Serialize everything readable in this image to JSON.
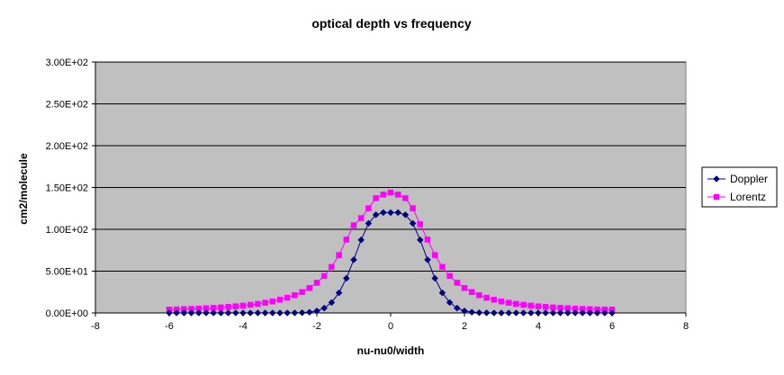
{
  "chart_data": {
    "type": "line",
    "title": "optical depth vs frequency",
    "xlabel": "nu-nu0/width",
    "ylabel": "cm2/molecule",
    "xlim": [
      -8,
      8
    ],
    "ylim": [
      0,
      300
    ],
    "x_ticks": [
      -8,
      -6,
      -4,
      -2,
      0,
      2,
      4,
      6,
      8
    ],
    "x_tick_labels": [
      "-8",
      "-6",
      "-4",
      "-2",
      "0",
      "2",
      "4",
      "6",
      "8"
    ],
    "y_ticks": [
      0,
      50,
      100,
      150,
      200,
      250,
      300
    ],
    "y_tick_labels": [
      "0.00E+00",
      "5.00E+01",
      "1.00E+02",
      "1.50E+02",
      "2.00E+02",
      "2.50E+02",
      "3.00E+02"
    ],
    "grid": "horizontal",
    "plot_background": "#C0C0C0",
    "legend_position": "right",
    "x": [
      -6.0,
      -5.8,
      -5.6,
      -5.4,
      -5.2,
      -5.0,
      -4.8,
      -4.6,
      -4.4,
      -4.2,
      -4.0,
      -3.8,
      -3.6,
      -3.4,
      -3.2,
      -3.0,
      -2.8,
      -2.6,
      -2.4,
      -2.2,
      -2.0,
      -1.8,
      -1.6,
      -1.4,
      -1.2,
      -1.0,
      -0.8,
      -0.6,
      -0.4,
      -0.2,
      0.0,
      0.2,
      0.4,
      0.6,
      0.8,
      1.0,
      1.2,
      1.4,
      1.6,
      1.8,
      2.0,
      2.2,
      2.4,
      2.6,
      2.8,
      3.0,
      3.2,
      3.4,
      3.6,
      3.8,
      4.0,
      4.2,
      4.4,
      4.6,
      4.8,
      5.0,
      5.2,
      5.4,
      5.6,
      5.8,
      6.0
    ],
    "series": [
      {
        "name": "Doppler",
        "color": "#000080",
        "marker": "diamond",
        "values": [
          0.0,
          0.0,
          0.0,
          0.0,
          0.0,
          0.0,
          0.0,
          0.0,
          0.0,
          0.0,
          0.0,
          0.0,
          0.0,
          0.0,
          0.0,
          0.0,
          0.0,
          0.1,
          0.3,
          0.9,
          2.4,
          5.8,
          12.5,
          24.1,
          41.4,
          63.6,
          87.3,
          107.1,
          117.4,
          120.0,
          120.0,
          120.0,
          117.4,
          107.1,
          87.3,
          63.6,
          41.4,
          24.1,
          12.5,
          5.8,
          2.4,
          0.9,
          0.3,
          0.1,
          0.0,
          0.0,
          0.0,
          0.0,
          0.0,
          0.0,
          0.0,
          0.0,
          0.0,
          0.0,
          0.0,
          0.0,
          0.0,
          0.0,
          0.0,
          0.0,
          0.0
        ]
      },
      {
        "name": "Lorentz",
        "color": "#FF00FF",
        "marker": "square",
        "values": [
          4.0,
          4.2,
          4.5,
          4.8,
          5.2,
          5.6,
          6.1,
          6.6,
          7.2,
          7.9,
          8.7,
          9.7,
          10.8,
          12.2,
          13.8,
          15.8,
          18.2,
          21.2,
          25.0,
          29.8,
          36.1,
          44.2,
          55.0,
          69.2,
          87.7,
          104.8,
          113.4,
          125.2,
          137.2,
          141.5,
          144.0,
          141.5,
          137.2,
          125.2,
          106.0,
          87.7,
          69.2,
          55.0,
          44.2,
          36.1,
          29.8,
          25.0,
          21.2,
          18.2,
          15.8,
          13.8,
          12.2,
          10.8,
          9.7,
          8.7,
          7.9,
          7.2,
          6.6,
          6.1,
          5.6,
          5.2,
          4.8,
          4.5,
          4.2,
          4.0,
          4.0
        ]
      }
    ]
  }
}
